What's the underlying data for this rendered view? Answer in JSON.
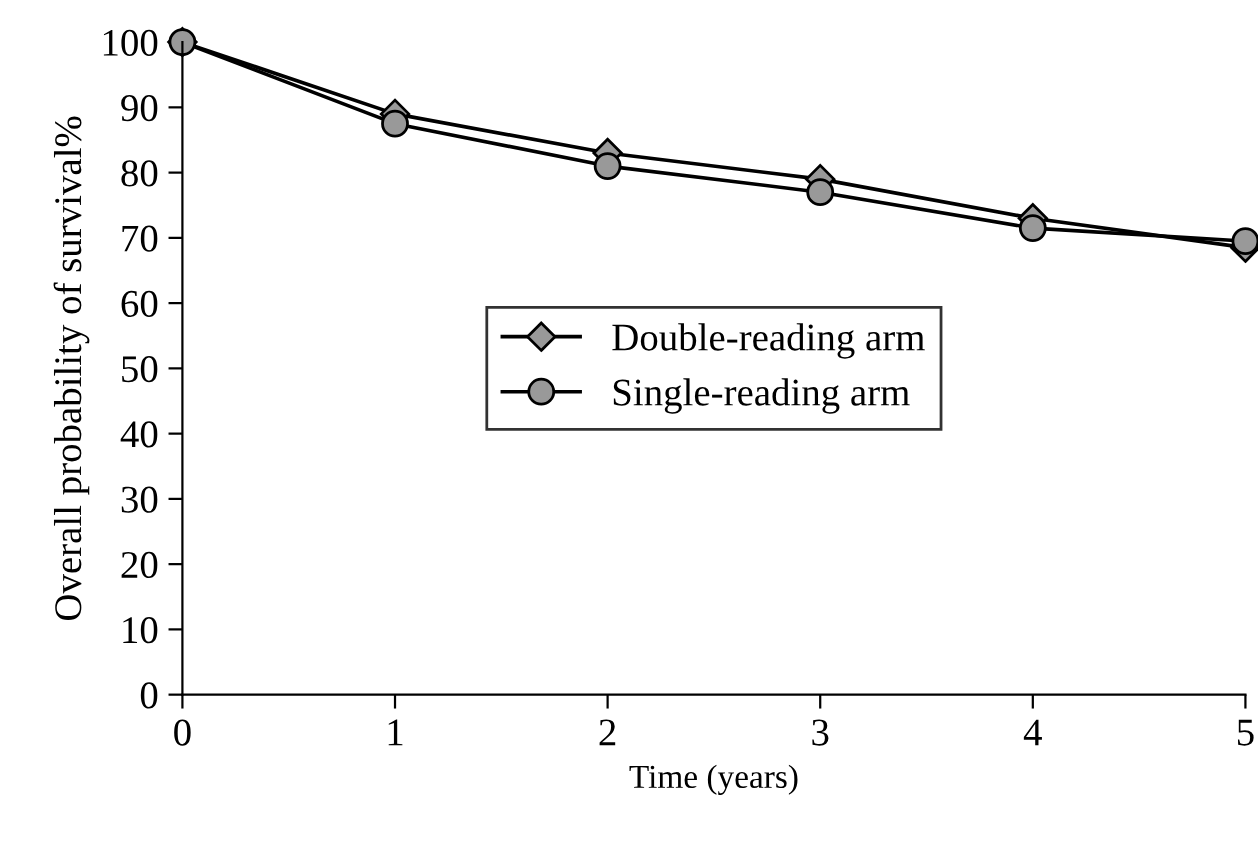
{
  "chart_data": {
    "type": "line",
    "xlabel": "Time (years)",
    "ylabel": "Overall probability of survival%",
    "x": [
      0,
      1,
      2,
      3,
      4,
      5
    ],
    "series": [
      {
        "name": "Double-reading arm",
        "color": "#999999",
        "marker": "diamond",
        "values": [
          100,
          89,
          83,
          79,
          73,
          68.5
        ]
      },
      {
        "name": "Single-reading arm",
        "color": "#999999",
        "marker": "circle",
        "values": [
          100,
          87.5,
          81,
          77,
          71.5,
          69.5
        ]
      }
    ],
    "xlim": [
      0,
      5
    ],
    "xticks": [
      0,
      1,
      2,
      3,
      4,
      5
    ],
    "ylim": [
      0,
      100
    ],
    "yticks": [
      0,
      10,
      20,
      30,
      40,
      50,
      60,
      70,
      80,
      90,
      100
    ],
    "grid": false,
    "legend": "center",
    "line_style": "solid"
  }
}
